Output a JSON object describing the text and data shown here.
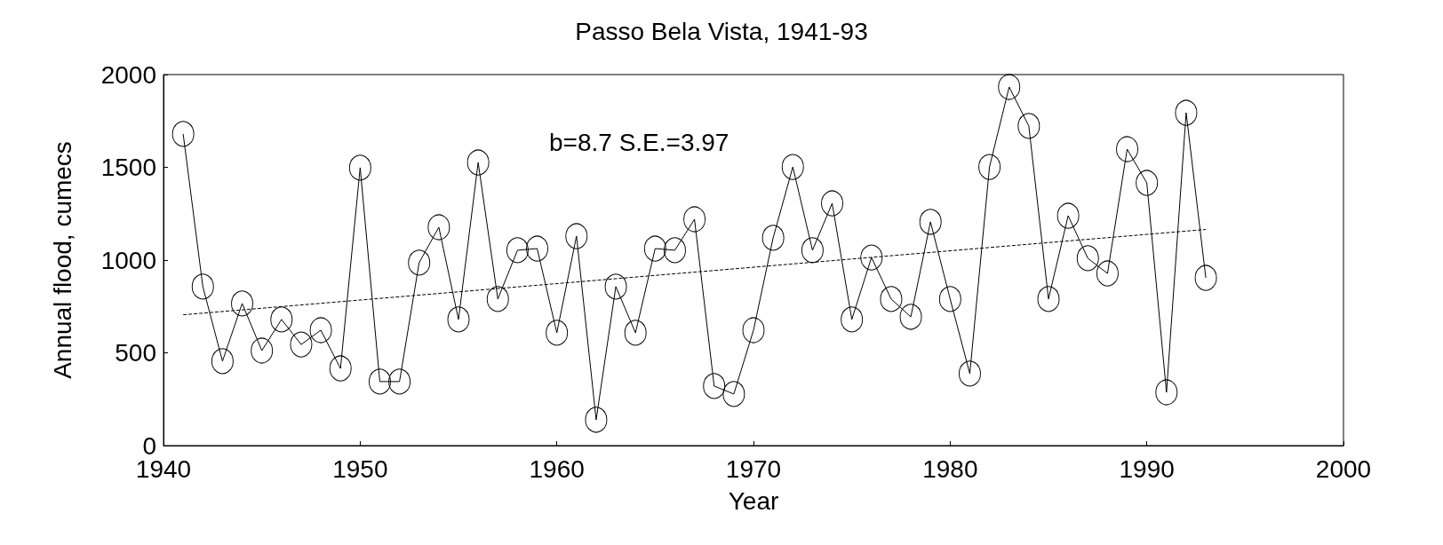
{
  "chart_data": {
    "type": "line",
    "title": "Passo Bela Vista, 1941-93",
    "xlabel": "Year",
    "ylabel": "Annual flood, cumecs",
    "annotations": [
      "b=8.7 S.E.=3.97"
    ],
    "x": [
      1941,
      1942,
      1943,
      1944,
      1945,
      1946,
      1947,
      1948,
      1949,
      1950,
      1951,
      1952,
      1953,
      1954,
      1955,
      1956,
      1957,
      1958,
      1959,
      1960,
      1961,
      1962,
      1963,
      1964,
      1965,
      1966,
      1967,
      1968,
      1969,
      1970,
      1971,
      1972,
      1973,
      1974,
      1975,
      1976,
      1977,
      1978,
      1979,
      1980,
      1981,
      1982,
      1983,
      1984,
      1985,
      1986,
      1987,
      1988,
      1989,
      1990,
      1991,
      1992,
      1993
    ],
    "series": [
      {
        "color": "#000000",
        "marker": "circle",
        "line_style": "solid",
        "values": [
          1680,
          857,
          455,
          766,
          512,
          680,
          545,
          622,
          416,
          1498,
          345,
          345,
          986,
          1177,
          680,
          1526,
          790,
          1053,
          1062,
          608,
          1129,
          139,
          857,
          608,
          1062,
          1053,
          1220,
          321,
          278,
          622,
          1120,
          1502,
          1053,
          1306,
          680,
          1014,
          790,
          694,
          1206,
          790,
          388,
          1502,
          1933,
          1723,
          790,
          1239,
          1010,
          928,
          1598,
          1416,
          287,
          1794,
          904
        ]
      },
      {
        "color": "#000000",
        "marker": "none",
        "line_style": "dashed",
        "x": [
          1941,
          1993
        ],
        "values": [
          705,
          1165
        ]
      }
    ],
    "xlim": [
      1940,
      2000
    ],
    "xticks": [
      1940,
      1950,
      1960,
      1970,
      1980,
      1990,
      2000
    ],
    "ylim": [
      0,
      2000
    ],
    "yticks": [
      0,
      500,
      1000,
      1500,
      2000
    ],
    "grid": false
  }
}
